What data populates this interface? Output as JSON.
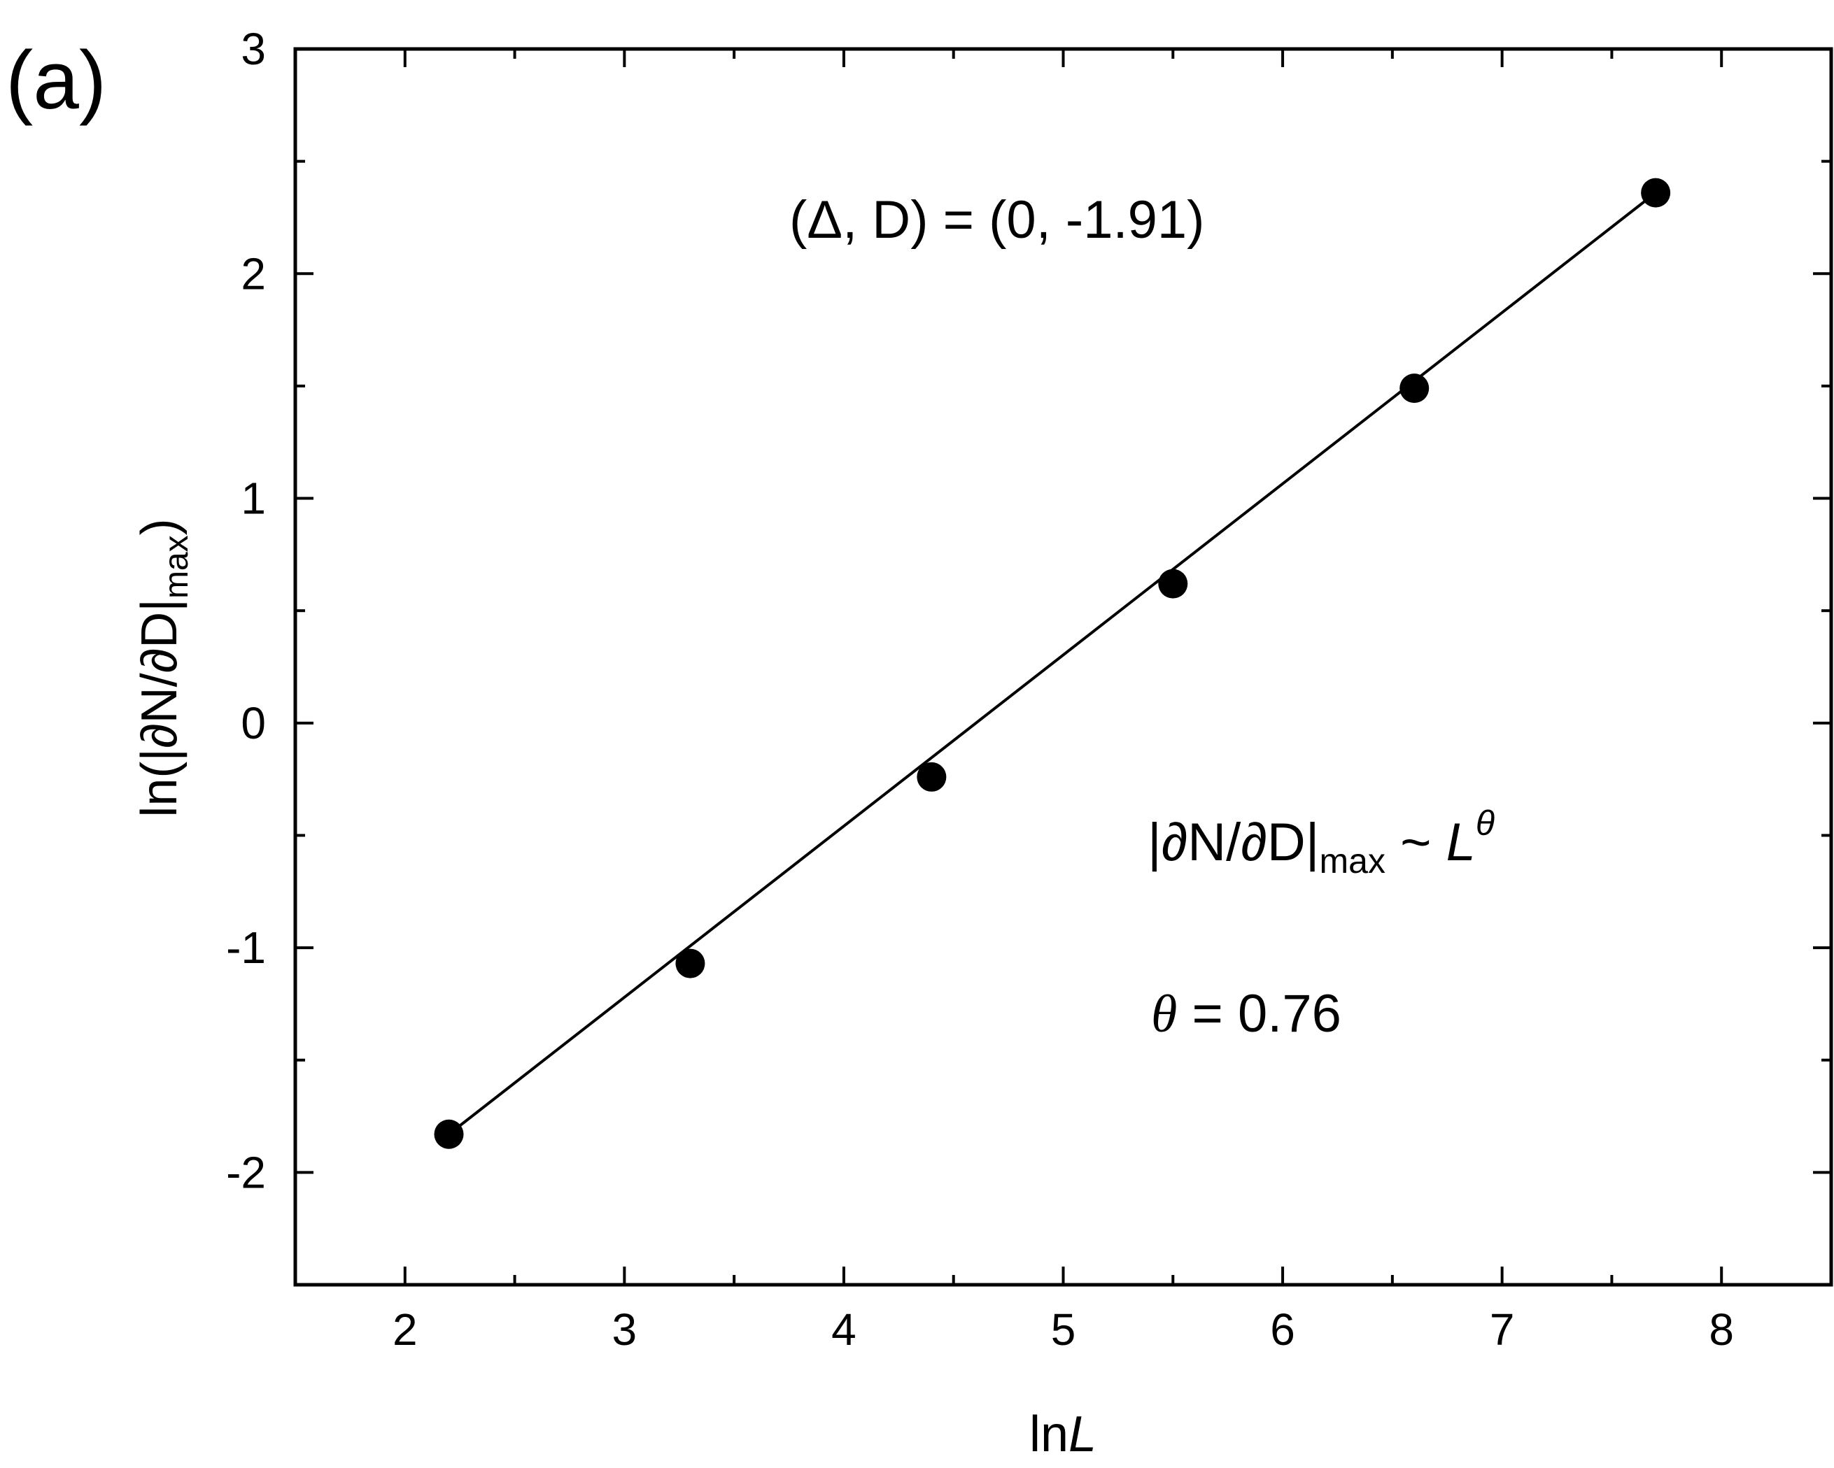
{
  "panel_label": "(a)",
  "chart_data": {
    "type": "scatter",
    "xlabel": {
      "main": "ln",
      "italic": "L"
    },
    "ylabel": {
      "main": "ln(|∂N/∂D|",
      "sub": "max",
      "close": ")"
    },
    "xlim": [
      1.5,
      8.5
    ],
    "ylim": [
      -2.5,
      3
    ],
    "x_ticks": [
      2,
      3,
      4,
      5,
      6,
      7,
      8
    ],
    "y_ticks": [
      -2,
      -1,
      0,
      1,
      2,
      3
    ],
    "x_tick_labels": [
      "2",
      "3",
      "4",
      "5",
      "6",
      "7",
      "8"
    ],
    "y_tick_labels": [
      "-2",
      "-1",
      "0",
      "1",
      "2",
      "3"
    ],
    "x_minor_step": 0.5,
    "y_minor_step": 0.5,
    "grid": false,
    "legend": "none",
    "series": [
      {
        "x": [
          2.2,
          3.3,
          4.4,
          5.5,
          6.6,
          7.7
        ],
        "y": [
          -1.83,
          -1.07,
          -0.24,
          0.62,
          1.49,
          2.36
        ],
        "marker": "filled-circle",
        "color": "#000000"
      }
    ],
    "fit_line": {
      "x": [
        2.2,
        7.7
      ],
      "y": [
        -1.83,
        2.36
      ],
      "color": "#000000"
    },
    "annotations": {
      "params": "(Δ, D) = (0, -1.91)",
      "scaling": {
        "main": "|∂N/∂D|",
        "sub": "max",
        "rel": " ~ ",
        "base": "L",
        "exp": "θ"
      },
      "exponent": {
        "symbol": "θ",
        "rest": " = 0.76"
      }
    }
  }
}
